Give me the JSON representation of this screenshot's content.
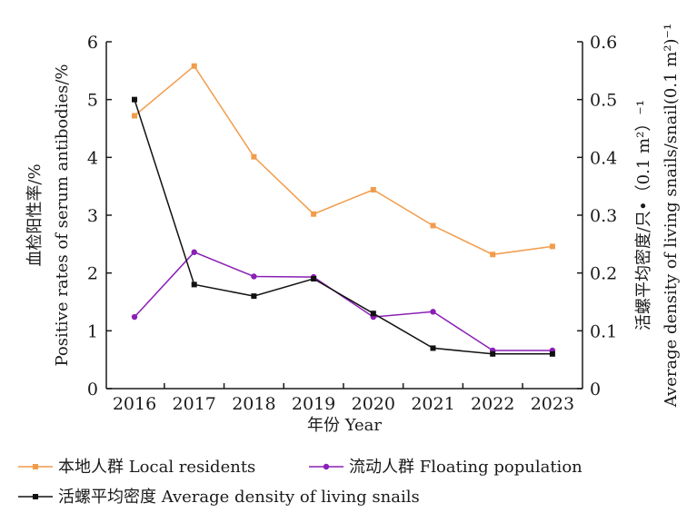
{
  "chart_data": {
    "type": "line",
    "x": [
      "2016",
      "2017",
      "2018",
      "2019",
      "2020",
      "2021",
      "2022",
      "2023"
    ],
    "xlabel": "年份 Year",
    "ylabel_left": [
      "血检阳性率/%",
      "Positive rates of serum antibodies/%"
    ],
    "ylabel_right": [
      "活螺平均密度/只•（0.1 m²）⁻¹",
      "Average density of living snails/snail(0.1 m²)⁻¹"
    ],
    "ylim_left": [
      0,
      6
    ],
    "ylim_right": [
      0,
      0.6
    ],
    "yticks_left": [
      "0",
      "1",
      "2",
      "3",
      "4",
      "5",
      "6"
    ],
    "yticks_right": [
      "0",
      "0.1",
      "0.2",
      "0.3",
      "0.4",
      "0.5",
      "0.6"
    ],
    "series": [
      {
        "name": "本地人群 Local residents",
        "axis": "left",
        "color": "#f29c4b",
        "marker": "square",
        "values": [
          4.72,
          5.58,
          4.01,
          3.02,
          3.44,
          2.82,
          2.32,
          2.46
        ]
      },
      {
        "name": "流动人群 Floating population",
        "axis": "left",
        "color": "#8a1fb5",
        "marker": "circle",
        "values": [
          1.24,
          2.36,
          1.94,
          1.93,
          1.24,
          1.33,
          0.66,
          0.66
        ]
      },
      {
        "name": "活螺平均密度 Average density of living snails",
        "axis": "right",
        "color": "#111111",
        "marker": "square",
        "values": [
          0.5,
          0.18,
          0.16,
          0.19,
          0.13,
          0.07,
          0.06,
          0.06
        ]
      }
    ],
    "grid": false,
    "legend_position": "bottom"
  }
}
